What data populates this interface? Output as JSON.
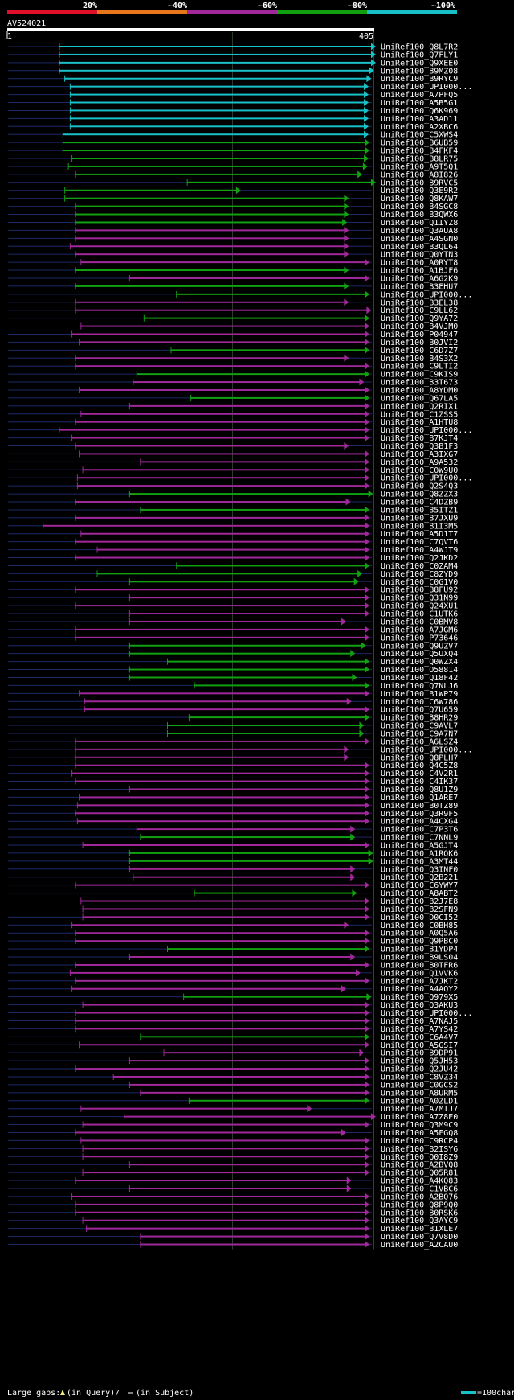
{
  "chart_data": {
    "type": "alignment",
    "query_id": "AV524021",
    "query_start": "1",
    "query_end": "405",
    "query_length": 405,
    "identity_scale": [
      {
        "label": "20%",
        "color": "#e0102a"
      },
      {
        "label": "~40%",
        "color": "#e8761a"
      },
      {
        "label": "~60%",
        "color": "#a0289a"
      },
      {
        "label": "~80%",
        "color": "#10a010"
      },
      {
        "label": "~100%",
        "color": "#18c0c8"
      }
    ],
    "gridlines_at": [
      125,
      250,
      375
    ],
    "legend": {
      "gaps_label": "Large gaps:",
      "in_query": "(in Query)/",
      "in_subject": "(in Subject)",
      "scale_label": "=100char."
    },
    "hits": [
      {
        "name": "UniRef100_Q8L7R2",
        "start": 58,
        "end": 405,
        "ident": "~100%"
      },
      {
        "name": "UniRef100_Q7FLY1",
        "start": 58,
        "end": 405,
        "ident": "~100%"
      },
      {
        "name": "UniRef100_Q9XEE0",
        "start": 58,
        "end": 405,
        "ident": "~100%"
      },
      {
        "name": "UniRef100_B9MZ08",
        "start": 58,
        "end": 403,
        "ident": "~100%"
      },
      {
        "name": "UniRef100_B9RYC9",
        "start": 64,
        "end": 400,
        "ident": "~100%"
      },
      {
        "name": "UniRef100_UPI000...",
        "start": 70,
        "end": 397,
        "ident": "~100%"
      },
      {
        "name": "UniRef100_A7PFQ5",
        "start": 70,
        "end": 397,
        "ident": "~100%"
      },
      {
        "name": "UniRef100_A5B5G1",
        "start": 70,
        "end": 397,
        "ident": "~100%"
      },
      {
        "name": "UniRef100_Q6K969",
        "start": 70,
        "end": 397,
        "ident": "~100%"
      },
      {
        "name": "UniRef100_A3AD11",
        "start": 70,
        "end": 397,
        "ident": "~100%"
      },
      {
        "name": "UniRef100_A2XBC6",
        "start": 70,
        "end": 397,
        "ident": "~100%"
      },
      {
        "name": "UniRef100_C5XWS4",
        "start": 62,
        "end": 397,
        "ident": "~100%"
      },
      {
        "name": "UniRef100_B6UB59",
        "start": 62,
        "end": 398,
        "ident": "~80%"
      },
      {
        "name": "UniRef100_B4FKF4",
        "start": 62,
        "end": 398,
        "ident": "~80%"
      },
      {
        "name": "UniRef100_B8LR75",
        "start": 72,
        "end": 397,
        "ident": "~80%"
      },
      {
        "name": "UniRef100_A9T5Q1",
        "start": 68,
        "end": 396,
        "ident": "~80%"
      },
      {
        "name": "UniRef100_A8I826",
        "start": 76,
        "end": 390,
        "ident": "~80%"
      },
      {
        "name": "UniRef100_B9RVC5",
        "start": 200,
        "end": 405,
        "ident": "~80%"
      },
      {
        "name": "UniRef100_Q3E9R2",
        "start": 64,
        "end": 255,
        "ident": "~80%"
      },
      {
        "name": "UniRef100_Q8KAW7",
        "start": 64,
        "end": 375,
        "ident": "~80%"
      },
      {
        "name": "UniRef100_B4SGC8",
        "start": 76,
        "end": 375,
        "ident": "~80%"
      },
      {
        "name": "UniRef100_B3QWX6",
        "start": 76,
        "end": 375,
        "ident": "~80%"
      },
      {
        "name": "UniRef100_Q1IYZ8",
        "start": 76,
        "end": 373,
        "ident": "~80%"
      },
      {
        "name": "UniRef100_Q3AUA8",
        "start": 76,
        "end": 375,
        "ident": "~60%"
      },
      {
        "name": "UniRef100_A4SGN0",
        "start": 76,
        "end": 375,
        "ident": "~60%"
      },
      {
        "name": "UniRef100_B3QL64",
        "start": 70,
        "end": 375,
        "ident": "~60%"
      },
      {
        "name": "UniRef100_Q0YTN3",
        "start": 76,
        "end": 375,
        "ident": "~60%"
      },
      {
        "name": "UniRef100_A0RYT8",
        "start": 82,
        "end": 398,
        "ident": "~60%"
      },
      {
        "name": "UniRef100_A1BJF6",
        "start": 76,
        "end": 375,
        "ident": "~80%"
      },
      {
        "name": "UniRef100_A6G2K9",
        "start": 136,
        "end": 398,
        "ident": "~60%"
      },
      {
        "name": "UniRef100_B3EHU7",
        "start": 76,
        "end": 375,
        "ident": "~80%"
      },
      {
        "name": "UniRef100_UPI000...",
        "start": 188,
        "end": 398,
        "ident": "~80%"
      },
      {
        "name": "UniRef100_B3EL38",
        "start": 76,
        "end": 375,
        "ident": "~60%"
      },
      {
        "name": "UniRef100_C9LL62",
        "start": 76,
        "end": 400,
        "ident": "~60%"
      },
      {
        "name": "UniRef100_Q9YA72",
        "start": 152,
        "end": 398,
        "ident": "~80%"
      },
      {
        "name": "UniRef100_B4VJM0",
        "start": 82,
        "end": 398,
        "ident": "~60%"
      },
      {
        "name": "UniRef100_P04947",
        "start": 72,
        "end": 398,
        "ident": "~60%"
      },
      {
        "name": "UniRef100_B0JVI2",
        "start": 80,
        "end": 398,
        "ident": "~60%"
      },
      {
        "name": "UniRef100_C6D7Z7",
        "start": 182,
        "end": 398,
        "ident": "~80%"
      },
      {
        "name": "UniRef100_B4S3X2",
        "start": 76,
        "end": 375,
        "ident": "~60%"
      },
      {
        "name": "UniRef100_C9LTI2",
        "start": 76,
        "end": 398,
        "ident": "~60%"
      },
      {
        "name": "UniRef100_C9KIS9",
        "start": 144,
        "end": 398,
        "ident": "~80%"
      },
      {
        "name": "UniRef100_B3T673",
        "start": 140,
        "end": 392,
        "ident": "~60%"
      },
      {
        "name": "UniRef100_A8YDM0",
        "start": 80,
        "end": 398,
        "ident": "~60%"
      },
      {
        "name": "UniRef100_Q67LA5",
        "start": 204,
        "end": 398,
        "ident": "~80%"
      },
      {
        "name": "UniRef100_Q2RIX1",
        "start": 136,
        "end": 398,
        "ident": "~60%"
      },
      {
        "name": "UniRef100_C1ZSS5",
        "start": 82,
        "end": 398,
        "ident": "~60%"
      },
      {
        "name": "UniRef100_A1HTU8",
        "start": 76,
        "end": 398,
        "ident": "~60%"
      },
      {
        "name": "UniRef100_UPI000...",
        "start": 58,
        "end": 398,
        "ident": "~60%"
      },
      {
        "name": "UniRef100_B7KJT4",
        "start": 72,
        "end": 398,
        "ident": "~60%"
      },
      {
        "name": "UniRef100_Q3B1F3",
        "start": 76,
        "end": 375,
        "ident": "~60%"
      },
      {
        "name": "UniRef100_A3IXG7",
        "start": 80,
        "end": 398,
        "ident": "~60%"
      },
      {
        "name": "UniRef100_A9A532",
        "start": 148,
        "end": 398,
        "ident": "~60%"
      },
      {
        "name": "UniRef100_C0W9U0",
        "start": 84,
        "end": 398,
        "ident": "~60%"
      },
      {
        "name": "UniRef100_UPI000...",
        "start": 78,
        "end": 398,
        "ident": "~60%"
      },
      {
        "name": "UniRef100_Q2S4Q3",
        "start": 78,
        "end": 398,
        "ident": "~60%"
      },
      {
        "name": "UniRef100_Q8ZZX3",
        "start": 136,
        "end": 402,
        "ident": "~80%"
      },
      {
        "name": "UniRef100_C4DZB9",
        "start": 76,
        "end": 377,
        "ident": "~60%"
      },
      {
        "name": "UniRef100_B5ITZ1",
        "start": 148,
        "end": 398,
        "ident": "~80%"
      },
      {
        "name": "UniRef100_B7JXU9",
        "start": 76,
        "end": 398,
        "ident": "~60%"
      },
      {
        "name": "UniRef100_B1I3M5",
        "start": 40,
        "end": 398,
        "ident": "~60%"
      },
      {
        "name": "UniRef100_A5D1T7",
        "start": 82,
        "end": 398,
        "ident": "~60%"
      },
      {
        "name": "UniRef100_C7QVT6",
        "start": 76,
        "end": 398,
        "ident": "~60%"
      },
      {
        "name": "UniRef100_A4WJT9",
        "start": 100,
        "end": 398,
        "ident": "~60%"
      },
      {
        "name": "UniRef100_Q2JKD2",
        "start": 76,
        "end": 398,
        "ident": "~60%"
      },
      {
        "name": "UniRef100_C0ZAM4",
        "start": 188,
        "end": 398,
        "ident": "~80%"
      },
      {
        "name": "UniRef100_C8ZYD9",
        "start": 100,
        "end": 390,
        "ident": "~80%"
      },
      {
        "name": "UniRef100_C0G1V0",
        "start": 136,
        "end": 386,
        "ident": "~80%"
      },
      {
        "name": "UniRef100_B8FU92",
        "start": 76,
        "end": 398,
        "ident": "~60%"
      },
      {
        "name": "UniRef100_Q31N99",
        "start": 136,
        "end": 398,
        "ident": "~60%"
      },
      {
        "name": "UniRef100_Q24XU1",
        "start": 76,
        "end": 398,
        "ident": "~60%"
      },
      {
        "name": "UniRef100_C1UTK6",
        "start": 136,
        "end": 398,
        "ident": "~60%"
      },
      {
        "name": "UniRef100_C0BMV8",
        "start": 136,
        "end": 372,
        "ident": "~60%"
      },
      {
        "name": "UniRef100_A7JGM6",
        "start": 76,
        "end": 398,
        "ident": "~60%"
      },
      {
        "name": "UniRef100_P73646",
        "start": 76,
        "end": 398,
        "ident": "~60%"
      },
      {
        "name": "UniRef100_Q9UZV7",
        "start": 136,
        "end": 394,
        "ident": "~80%"
      },
      {
        "name": "UniRef100_Q5UXQ4",
        "start": 136,
        "end": 382,
        "ident": "~80%"
      },
      {
        "name": "UniRef100_Q0WZX4",
        "start": 178,
        "end": 398,
        "ident": "~80%"
      },
      {
        "name": "UniRef100_O58814",
        "start": 136,
        "end": 398,
        "ident": "~80%"
      },
      {
        "name": "UniRef100_Q18F42",
        "start": 136,
        "end": 384,
        "ident": "~80%"
      },
      {
        "name": "UniRef100_Q7NLJ6",
        "start": 208,
        "end": 398,
        "ident": "~80%"
      },
      {
        "name": "UniRef100_B1WP79",
        "start": 80,
        "end": 398,
        "ident": "~60%"
      },
      {
        "name": "UniRef100_C6W786",
        "start": 86,
        "end": 378,
        "ident": "~60%"
      },
      {
        "name": "UniRef100_Q7U659",
        "start": 86,
        "end": 398,
        "ident": "~60%"
      },
      {
        "name": "UniRef100_B8HR29",
        "start": 202,
        "end": 398,
        "ident": "~80%"
      },
      {
        "name": "UniRef100_C9AVL7",
        "start": 178,
        "end": 392,
        "ident": "~80%"
      },
      {
        "name": "UniRef100_C9A7N7",
        "start": 178,
        "end": 392,
        "ident": "~80%"
      },
      {
        "name": "UniRef100_A6LSZ4",
        "start": 76,
        "end": 398,
        "ident": "~60%"
      },
      {
        "name": "UniRef100_UPI000...",
        "start": 76,
        "end": 375,
        "ident": "~60%"
      },
      {
        "name": "UniRef100_Q8PLH7",
        "start": 76,
        "end": 375,
        "ident": "~60%"
      },
      {
        "name": "UniRef100_Q4C5Z8",
        "start": 76,
        "end": 398,
        "ident": "~60%"
      },
      {
        "name": "UniRef100_C4V2R1",
        "start": 72,
        "end": 398,
        "ident": "~60%"
      },
      {
        "name": "UniRef100_C4IK37",
        "start": 76,
        "end": 398,
        "ident": "~60%"
      },
      {
        "name": "UniRef100_Q8U1Z9",
        "start": 136,
        "end": 398,
        "ident": "~60%"
      },
      {
        "name": "UniRef100_Q1ARE7",
        "start": 80,
        "end": 398,
        "ident": "~60%"
      },
      {
        "name": "UniRef100_B0TZ89",
        "start": 78,
        "end": 398,
        "ident": "~60%"
      },
      {
        "name": "UniRef100_Q3R9F5",
        "start": 76,
        "end": 398,
        "ident": "~60%"
      },
      {
        "name": "UniRef100_A4CXG4",
        "start": 78,
        "end": 398,
        "ident": "~60%"
      },
      {
        "name": "UniRef100_C7P3T6",
        "start": 144,
        "end": 382,
        "ident": "~60%"
      },
      {
        "name": "UniRef100_C7NNL9",
        "start": 148,
        "end": 382,
        "ident": "~80%"
      },
      {
        "name": "UniRef100_A5GJT4",
        "start": 84,
        "end": 398,
        "ident": "~60%"
      },
      {
        "name": "UniRef100_A1RQK6",
        "start": 136,
        "end": 402,
        "ident": "~80%"
      },
      {
        "name": "UniRef100_A3MT44",
        "start": 136,
        "end": 402,
        "ident": "~80%"
      },
      {
        "name": "UniRef100_Q3INF0",
        "start": 136,
        "end": 382,
        "ident": "~60%"
      },
      {
        "name": "UniRef100_Q2B221",
        "start": 140,
        "end": 382,
        "ident": "~60%"
      },
      {
        "name": "UniRef100_C6YWY7",
        "start": 76,
        "end": 398,
        "ident": "~60%"
      },
      {
        "name": "UniRef100_A8ABT2",
        "start": 208,
        "end": 384,
        "ident": "~80%"
      },
      {
        "name": "UniRef100_B2J7E8",
        "start": 82,
        "end": 398,
        "ident": "~60%"
      },
      {
        "name": "UniRef100_B2SFN9",
        "start": 84,
        "end": 398,
        "ident": "~60%"
      },
      {
        "name": "UniRef100_D0CI52",
        "start": 84,
        "end": 398,
        "ident": "~60%"
      },
      {
        "name": "UniRef100_C0BH85",
        "start": 72,
        "end": 375,
        "ident": "~60%"
      },
      {
        "name": "UniRef100_A0Q5A6",
        "start": 76,
        "end": 398,
        "ident": "~60%"
      },
      {
        "name": "UniRef100_Q9PBC0",
        "start": 76,
        "end": 398,
        "ident": "~60%"
      },
      {
        "name": "UniRef100_B1YDP4",
        "start": 178,
        "end": 398,
        "ident": "~80%"
      },
      {
        "name": "UniRef100_B9LS04",
        "start": 136,
        "end": 382,
        "ident": "~60%"
      },
      {
        "name": "UniRef100_B0TFR6",
        "start": 76,
        "end": 398,
        "ident": "~60%"
      },
      {
        "name": "UniRef100_Q1VVK6",
        "start": 70,
        "end": 388,
        "ident": "~60%"
      },
      {
        "name": "UniRef100_A7JKT2",
        "start": 76,
        "end": 398,
        "ident": "~60%"
      },
      {
        "name": "UniRef100_A4AQY2",
        "start": 72,
        "end": 372,
        "ident": "~60%"
      },
      {
        "name": "UniRef100_Q979X5",
        "start": 196,
        "end": 400,
        "ident": "~80%"
      },
      {
        "name": "UniRef100_Q3AKU3",
        "start": 84,
        "end": 398,
        "ident": "~60%"
      },
      {
        "name": "UniRef100_UPI000...",
        "start": 76,
        "end": 398,
        "ident": "~60%"
      },
      {
        "name": "UniRef100_A7NAJ5",
        "start": 76,
        "end": 398,
        "ident": "~60%"
      },
      {
        "name": "UniRef100_A7YS42",
        "start": 76,
        "end": 398,
        "ident": "~60%"
      },
      {
        "name": "UniRef100_C6A4V7",
        "start": 148,
        "end": 398,
        "ident": "~80%"
      },
      {
        "name": "UniRef100_A5GSI7",
        "start": 80,
        "end": 398,
        "ident": "~60%"
      },
      {
        "name": "UniRef100_B9DP91",
        "start": 174,
        "end": 392,
        "ident": "~60%"
      },
      {
        "name": "UniRef100_Q5JH53",
        "start": 136,
        "end": 398,
        "ident": "~60%"
      },
      {
        "name": "UniRef100_Q2JU42",
        "start": 76,
        "end": 398,
        "ident": "~60%"
      },
      {
        "name": "UniRef100_C8VZ34",
        "start": 118,
        "end": 398,
        "ident": "~60%"
      },
      {
        "name": "UniRef100_C0GCS2",
        "start": 136,
        "end": 398,
        "ident": "~60%"
      },
      {
        "name": "UniRef100_A8URM5",
        "start": 148,
        "end": 398,
        "ident": "~60%"
      },
      {
        "name": "UniRef100_A0ZLD1",
        "start": 202,
        "end": 398,
        "ident": "~80%"
      },
      {
        "name": "UniRef100_A7MIJ7",
        "start": 82,
        "end": 334,
        "ident": "~60%"
      },
      {
        "name": "UniRef100_A7Z8E0",
        "start": 130,
        "end": 405,
        "ident": "~60%"
      },
      {
        "name": "UniRef100_Q3M9C9",
        "start": 84,
        "end": 398,
        "ident": "~60%"
      },
      {
        "name": "UniRef100_A5FGQ8",
        "start": 76,
        "end": 372,
        "ident": "~60%"
      },
      {
        "name": "UniRef100_C9RCP4",
        "start": 82,
        "end": 398,
        "ident": "~60%"
      },
      {
        "name": "UniRef100_B2ISY6",
        "start": 84,
        "end": 398,
        "ident": "~60%"
      },
      {
        "name": "UniRef100_Q0I8Z9",
        "start": 84,
        "end": 398,
        "ident": "~60%"
      },
      {
        "name": "UniRef100_A2BVQ8",
        "start": 136,
        "end": 398,
        "ident": "~60%"
      },
      {
        "name": "UniRef100_Q05R81",
        "start": 84,
        "end": 398,
        "ident": "~60%"
      },
      {
        "name": "UniRef100_A4KQ83",
        "start": 76,
        "end": 378,
        "ident": "~60%"
      },
      {
        "name": "UniRef100_C1VBC6",
        "start": 136,
        "end": 378,
        "ident": "~60%"
      },
      {
        "name": "UniRef100_A2BQ76",
        "start": 72,
        "end": 398,
        "ident": "~60%"
      },
      {
        "name": "UniRef100_Q8P9Q0",
        "start": 76,
        "end": 398,
        "ident": "~60%"
      },
      {
        "name": "UniRef100_B0RSK6",
        "start": 76,
        "end": 398,
        "ident": "~60%"
      },
      {
        "name": "UniRef100_Q3AYC9",
        "start": 84,
        "end": 398,
        "ident": "~60%"
      },
      {
        "name": "UniRef100_B1XLE7",
        "start": 88,
        "end": 398,
        "ident": "~60%"
      },
      {
        "name": "UniRef100_Q7V8D0",
        "start": 148,
        "end": 398,
        "ident": "~60%"
      },
      {
        "name": "UniRef100_A2CAU0",
        "start": 148,
        "end": 398,
        "ident": "~60%"
      }
    ]
  }
}
